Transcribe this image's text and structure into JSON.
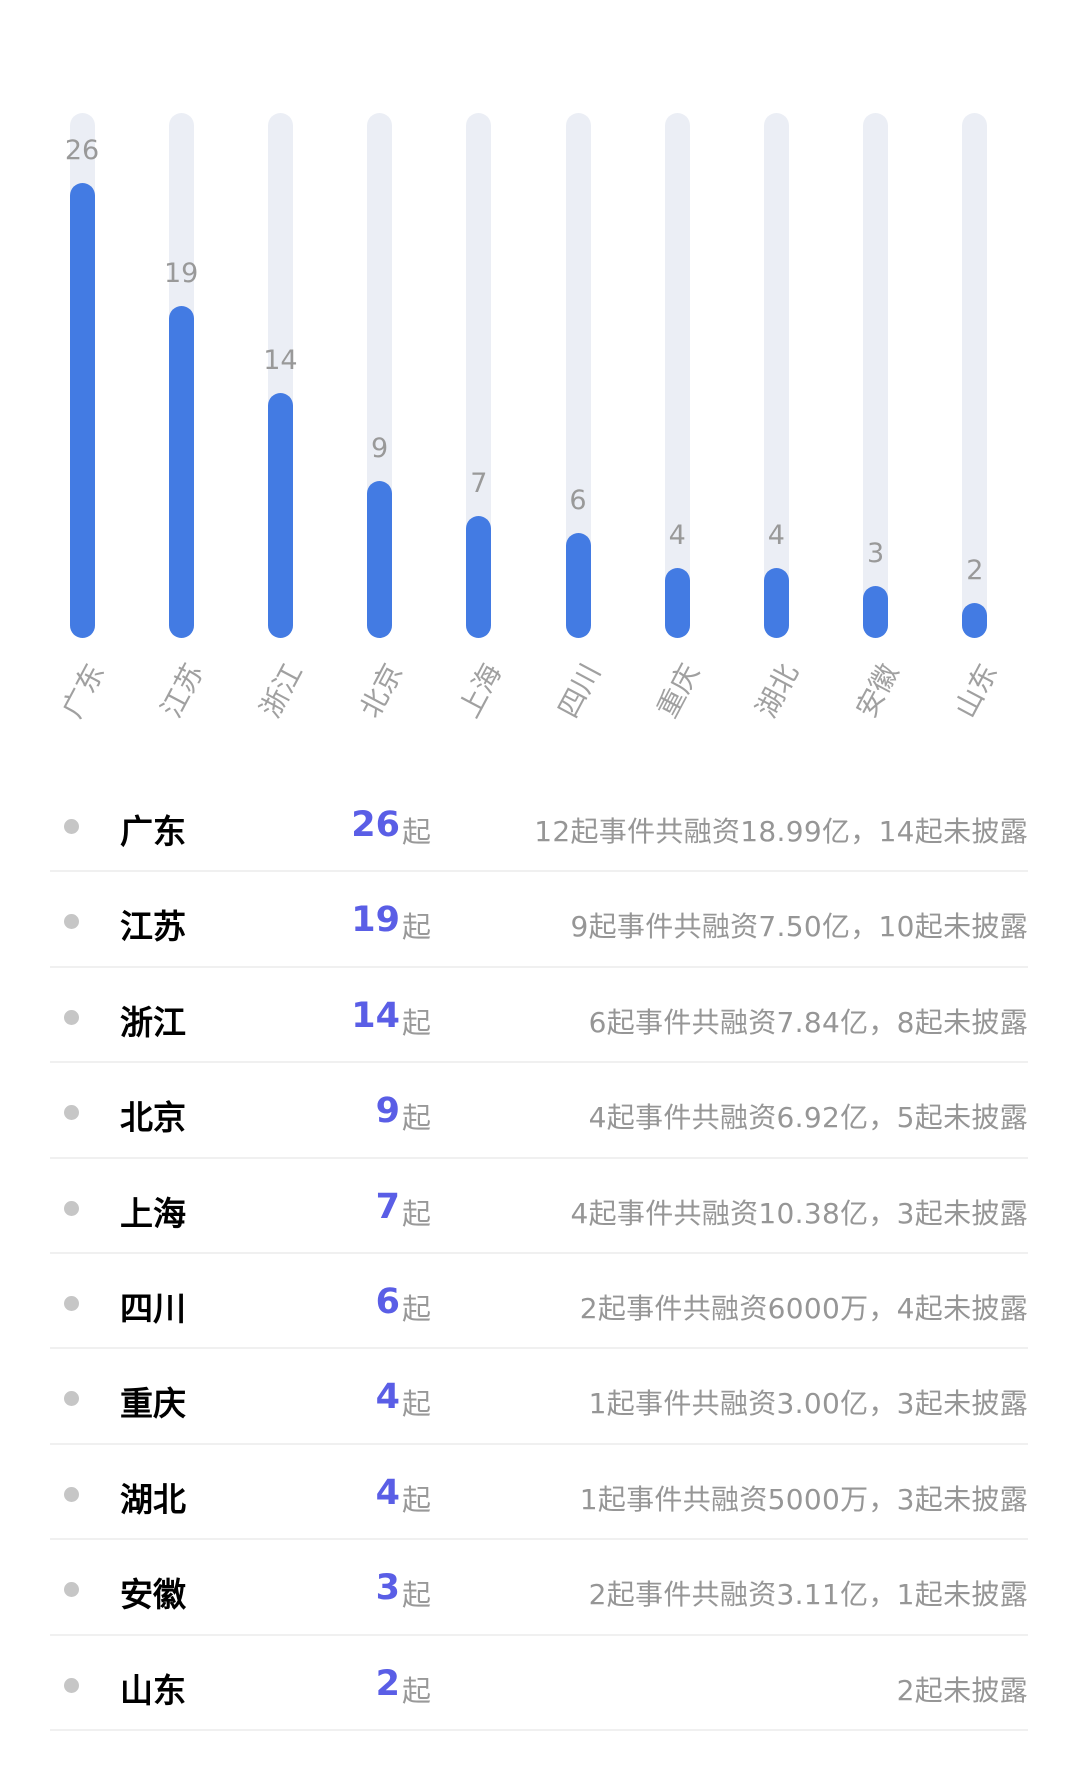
{
  "chart_data": {
    "type": "bar",
    "title": "",
    "xlabel": "",
    "ylabel": "",
    "ylim": [
      0,
      30
    ],
    "categories": [
      "广东",
      "江苏",
      "浙江",
      "北京",
      "上海",
      "四川",
      "重庆",
      "湖北",
      "安徽",
      "山东"
    ],
    "values": [
      26,
      19,
      14,
      9,
      7,
      6,
      4,
      4,
      3,
      2
    ],
    "data_labels": true,
    "grid": false,
    "colors": {
      "bar": "#437be3",
      "track": "#ebeef5"
    }
  },
  "chart": {
    "bars": [
      {
        "label": "广东",
        "value": "26"
      },
      {
        "label": "江苏",
        "value": "19"
      },
      {
        "label": "浙江",
        "value": "14"
      },
      {
        "label": "北京",
        "value": "9"
      },
      {
        "label": "上海",
        "value": "7"
      },
      {
        "label": "四川",
        "value": "6"
      },
      {
        "label": "重庆",
        "value": "4"
      },
      {
        "label": "湖北",
        "value": "4"
      },
      {
        "label": "安徽",
        "value": "3"
      },
      {
        "label": "山东",
        "value": "2"
      }
    ]
  },
  "list": {
    "unit": "起",
    "rows": [
      {
        "name": "广东",
        "count": "26",
        "detail": "12起事件共融资18.99亿，14起未披露"
      },
      {
        "name": "江苏",
        "count": "19",
        "detail": "9起事件共融资7.50亿，10起未披露"
      },
      {
        "name": "浙江",
        "count": "14",
        "detail": "6起事件共融资7.84亿，8起未披露"
      },
      {
        "name": "北京",
        "count": "9",
        "detail": "4起事件共融资6.92亿，5起未披露"
      },
      {
        "name": "上海",
        "count": "7",
        "detail": "4起事件共融资10.38亿，3起未披露"
      },
      {
        "name": "四川",
        "count": "6",
        "detail": "2起事件共融资6000万，4起未披露"
      },
      {
        "name": "重庆",
        "count": "4",
        "detail": "1起事件共融资3.00亿，3起未披露"
      },
      {
        "name": "湖北",
        "count": "4",
        "detail": "1起事件共融资5000万，3起未披露"
      },
      {
        "name": "安徽",
        "count": "3",
        "detail": "2起事件共融资3.11亿，1起未披露"
      },
      {
        "name": "山东",
        "count": "2",
        "detail": "2起未披露"
      }
    ]
  }
}
